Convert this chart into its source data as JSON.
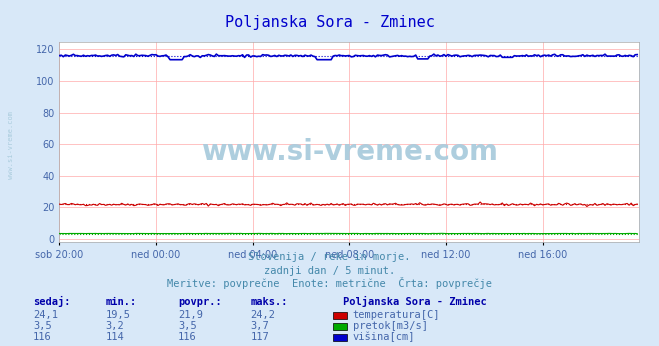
{
  "title": "Poljanska Sora - Zminec",
  "title_color": "#0000cc",
  "bg_color": "#d8e8f8",
  "plot_bg_color": "#ffffff",
  "grid_color": "#ffaaaa",
  "xlabel_ticks": [
    "sob 20:00",
    "ned 00:00",
    "ned 04:00",
    "ned 08:00",
    "ned 12:00",
    "ned 16:00"
  ],
  "yticks": [
    0,
    20,
    40,
    60,
    80,
    100,
    120
  ],
  "ylim": [
    -2,
    125
  ],
  "xlim": [
    0,
    288
  ],
  "subtitle1": "Slovenija / reke in morje.",
  "subtitle2": "zadnji dan / 5 minut.",
  "subtitle3": "Meritve: povprečne  Enote: metrične  Črta: povprečje",
  "subtitle_color": "#4488aa",
  "watermark": "www.si-vreme.com",
  "watermark_color": "#aaccdd",
  "legend_title": "Poljanska Sora - Zminec",
  "legend_title_color": "#0000aa",
  "legend_items": [
    {
      "label": "temperatura[C]",
      "color": "#cc0000"
    },
    {
      "label": "pretok[m3/s]",
      "color": "#00aa00"
    },
    {
      "label": "višina[cm]",
      "color": "#0000cc"
    }
  ],
  "table_headers": [
    "sedaj:",
    "min.:",
    "povpr.:",
    "maks.:"
  ],
  "table_data": [
    [
      "24,1",
      "19,5",
      "21,9",
      "24,2"
    ],
    [
      "3,5",
      "3,2",
      "3,5",
      "3,7"
    ],
    [
      "116",
      "114",
      "116",
      "117"
    ]
  ],
  "table_color": "#4466aa",
  "temp_avg": 21.9,
  "temp_min": 19.5,
  "temp_max": 24.2,
  "pretok_avg": 3.5,
  "pretok_min": 3.2,
  "pretok_max": 3.7,
  "visina_avg": 116,
  "visina_min": 114,
  "visina_max": 117,
  "n_points": 288,
  "tick_x_positions": [
    0,
    48,
    96,
    144,
    192,
    240
  ]
}
